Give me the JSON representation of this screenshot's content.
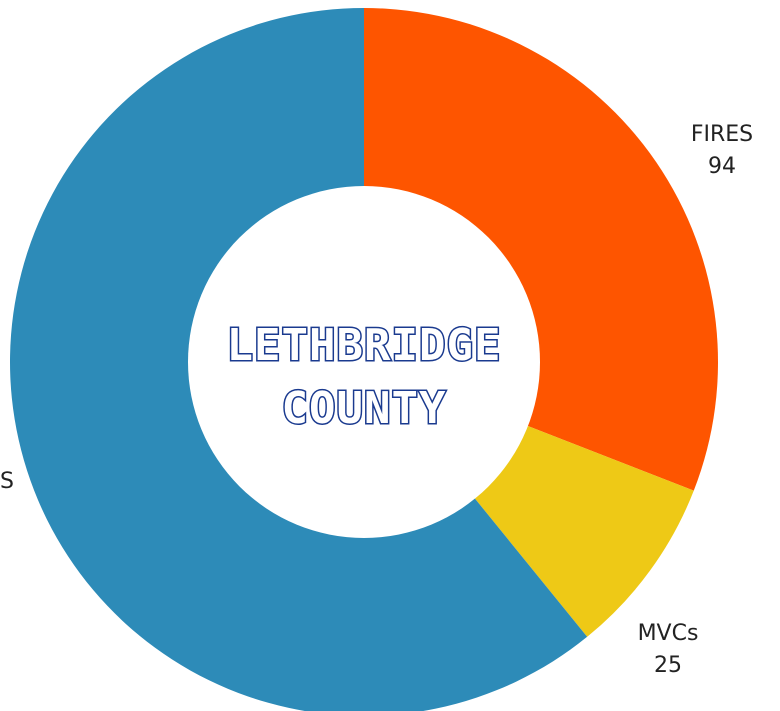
{
  "chart_data": {
    "type": "pie",
    "donut": true,
    "categories": [
      "FIRES",
      "MVCs",
      "S"
    ],
    "values": [
      94,
      25,
      185
    ],
    "colors": [
      "#fe5500",
      "#eec916",
      "#2d8bb8"
    ],
    "start_angle_deg": 0,
    "direction": "clockwise",
    "labels": [
      {
        "name": "FIRES",
        "value": "94"
      },
      {
        "name": "MVCs",
        "value": "25"
      },
      {
        "name": "S",
        "value": ""
      }
    ],
    "center_text": [
      "LETHBRIDGE",
      "COUNTY"
    ],
    "center_text_color": "#1a3a8f",
    "legend": "none",
    "grid": false
  }
}
